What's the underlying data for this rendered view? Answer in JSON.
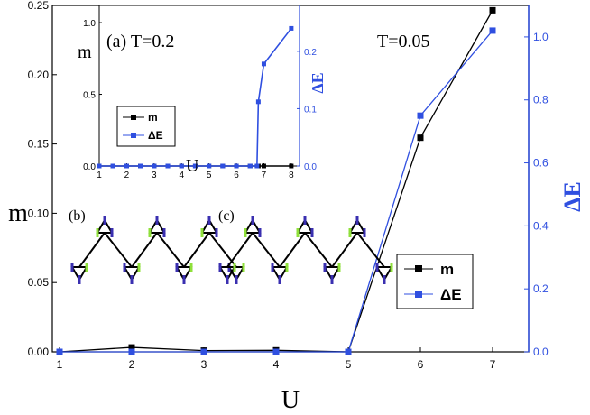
{
  "chart_data": [
    {
      "type": "line",
      "annotation": "T=0.05",
      "xlabel": "U",
      "ylabel": "m",
      "ylabel_right": "ΔE",
      "x": [
        1,
        2,
        3,
        4,
        5,
        6,
        7
      ],
      "xticks": [
        1,
        2,
        3,
        4,
        5,
        6,
        7
      ],
      "xlim": [
        0.9,
        7.5
      ],
      "ylim": [
        0,
        0.25
      ],
      "yticks": [
        "0.00",
        "0.05",
        "0.10",
        "0.15",
        "0.20",
        "0.25"
      ],
      "ylim_right": [
        0,
        1.1
      ],
      "yticks_right": [
        "0.0",
        "0.2",
        "0.4",
        "0.6",
        "0.8",
        "1.0"
      ],
      "series": [
        {
          "name": "m",
          "axis": "left",
          "color": "#000000",
          "values": [
            0.0,
            0.0032,
            0.0009,
            0.0011,
            0.0,
            0.1545,
            0.2465
          ]
        },
        {
          "name": "ΔE",
          "axis": "right",
          "color": "#2f4fe0",
          "values": [
            0.0,
            0.0,
            0.0,
            0.0,
            0.0,
            0.75,
            1.02
          ]
        }
      ],
      "legend": "bottom-right"
    },
    {
      "type": "line",
      "annotation": "(a) T=0.2",
      "xlabel": "U",
      "ylabel": "m",
      "ylabel_right": "ΔE",
      "xlim": [
        1,
        8.3
      ],
      "xticks": [
        1,
        2,
        3,
        4,
        5,
        6,
        7,
        8
      ],
      "ylim": [
        0,
        1.12
      ],
      "yticks": [
        "0.0",
        "0.5",
        "1.0"
      ],
      "ylim_right": [
        0,
        0.28
      ],
      "yticks_right": [
        "0.0",
        "0.1",
        "0.2"
      ],
      "series": [
        {
          "name": "m",
          "axis": "left",
          "color": "#000000",
          "x": [
            1,
            1.5,
            2,
            2.5,
            3,
            3.5,
            4,
            4.5,
            5,
            5.5,
            6,
            6.5,
            6.8,
            7,
            8
          ],
          "values": [
            0,
            0,
            0,
            0,
            0,
            0,
            0,
            0,
            0,
            0,
            0,
            0,
            0,
            0,
            0
          ]
        },
        {
          "name": "ΔE",
          "axis": "right",
          "color": "#2f4fe0",
          "x": [
            1,
            1.5,
            2,
            2.5,
            3,
            3.5,
            4,
            4.5,
            5,
            5.5,
            6,
            6.5,
            6.75,
            6.8,
            7,
            8
          ],
          "values": [
            0,
            0,
            0,
            0,
            0,
            0,
            0,
            0,
            0,
            0,
            0,
            0,
            0,
            0.112,
            0.178,
            0.24
          ]
        }
      ],
      "legend": "bottom-left"
    }
  ],
  "panels": {
    "b_label": "(b)",
    "c_label": "(c)"
  },
  "colors": {
    "left_axis": "#000000",
    "right_axis": "#2f4fe0",
    "spin_up": "#8fe03a",
    "spin_down": "#3a2fb0"
  }
}
